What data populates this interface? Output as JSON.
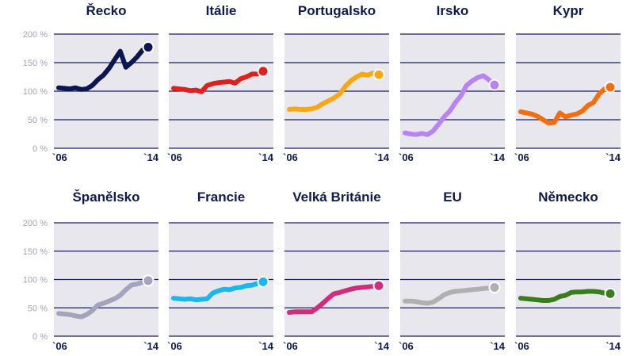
{
  "chart_data": [
    {
      "type": "line",
      "title": "Řecko",
      "color": "#0b1650",
      "x_labels": [
        "`06",
        "`14"
      ],
      "yticks": [
        "200 %",
        "150 %",
        "100 %",
        "50 %",
        "0 %"
      ],
      "ylim": [
        0,
        200
      ],
      "xlim": [
        2006,
        2014
      ],
      "values": [
        106,
        105,
        104,
        106,
        103,
        104,
        110,
        120,
        128,
        140,
        155,
        170,
        142,
        150,
        160,
        172,
        177
      ]
    },
    {
      "type": "line",
      "title": "Itálie",
      "color": "#e0201f",
      "x_labels": [
        "`06",
        "`14"
      ],
      "ylim": [
        0,
        200
      ],
      "xlim": [
        2006,
        2014
      ],
      "values": [
        105,
        104,
        103,
        101,
        102,
        99,
        110,
        113,
        115,
        116,
        117,
        114,
        122,
        125,
        130,
        130,
        135
      ]
    },
    {
      "type": "line",
      "title": "Portugalsko",
      "color": "#f8a814",
      "x_labels": [
        "`06",
        "`14"
      ],
      "ylim": [
        0,
        200
      ],
      "xlim": [
        2006,
        2014
      ],
      "values": [
        68,
        69,
        68,
        68,
        69,
        72,
        78,
        83,
        88,
        95,
        108,
        118,
        125,
        130,
        128,
        132,
        129
      ]
    },
    {
      "type": "line",
      "title": "Irsko",
      "color": "#b983f2",
      "x_labels": [
        "`06",
        "`14"
      ],
      "ylim": [
        0,
        200
      ],
      "xlim": [
        2006,
        2014
      ],
      "values": [
        27,
        25,
        24,
        26,
        24,
        30,
        42,
        55,
        65,
        80,
        92,
        110,
        118,
        124,
        127,
        120,
        111
      ]
    },
    {
      "type": "line",
      "title": "Kypr",
      "color": "#f26e0f",
      "x_labels": [
        "`06",
        "`14"
      ],
      "ylim": [
        0,
        200
      ],
      "xlim": [
        2006,
        2014
      ],
      "values": [
        64,
        62,
        60,
        56,
        50,
        44,
        45,
        62,
        55,
        58,
        60,
        65,
        75,
        80,
        95,
        104,
        107
      ]
    },
    {
      "type": "line",
      "title": "Španělsko",
      "color": "#a3a3bd",
      "x_labels": [
        "`06",
        "`14"
      ],
      "yticks": [
        "200 %",
        "150 %",
        "100 %",
        "50 %",
        "0 %"
      ],
      "ylim": [
        0,
        200
      ],
      "xlim": [
        2006,
        2014
      ],
      "values": [
        40,
        39,
        38,
        36,
        34,
        38,
        45,
        55,
        58,
        62,
        66,
        72,
        82,
        90,
        92,
        95,
        98
      ]
    },
    {
      "type": "line",
      "title": "Francie",
      "color": "#1ab6f0",
      "x_labels": [
        "`06",
        "`14"
      ],
      "ylim": [
        0,
        200
      ],
      "xlim": [
        2006,
        2014
      ],
      "values": [
        67,
        66,
        65,
        66,
        64,
        65,
        66,
        76,
        80,
        83,
        82,
        85,
        86,
        89,
        90,
        93,
        96
      ]
    },
    {
      "type": "line",
      "title": "Velká Británie",
      "color": "#d02d7a",
      "x_labels": [
        "`06",
        "`14"
      ],
      "ylim": [
        0,
        200
      ],
      "xlim": [
        2006,
        2014
      ],
      "values": [
        42,
        43,
        43,
        43,
        43,
        50,
        58,
        67,
        75,
        77,
        80,
        83,
        85,
        86,
        87,
        88,
        89
      ]
    },
    {
      "type": "line",
      "title": "EU",
      "color": "#b0b0b0",
      "x_labels": [
        "`06",
        "`14"
      ],
      "ylim": [
        0,
        200
      ],
      "xlim": [
        2006,
        2014
      ],
      "values": [
        62,
        62,
        61,
        59,
        58,
        60,
        66,
        73,
        77,
        79,
        80,
        81,
        82,
        83,
        84,
        85,
        86
      ]
    },
    {
      "type": "line",
      "title": "Německo",
      "color": "#3a7d1c",
      "x_labels": [
        "`06",
        "`14"
      ],
      "ylim": [
        0,
        200
      ],
      "xlim": [
        2006,
        2014
      ],
      "values": [
        67,
        66,
        65,
        64,
        63,
        63,
        65,
        70,
        72,
        77,
        78,
        78,
        79,
        79,
        78,
        76,
        75
      ]
    }
  ]
}
